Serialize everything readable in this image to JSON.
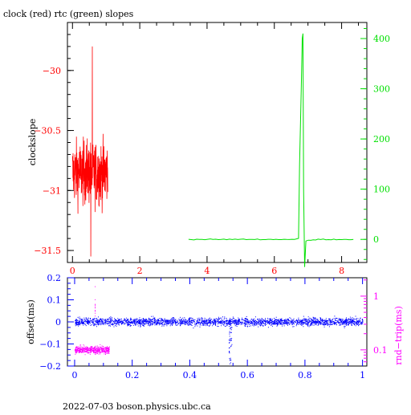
{
  "title": "clock (red) rtc (green) slopes",
  "footer": "2022-07-03  boson.physics.ubc.ca",
  "colors": {
    "clock": "#ff0000",
    "rtc": "#00e000",
    "offset": "#0000ff",
    "rndtrip": "#ff00ff",
    "axes_text": "#000000"
  },
  "chart_data": [
    {
      "type": "line",
      "title": "clock (red) rtc (green) slopes",
      "ylabel": "clockslope",
      "xlim": [
        -0.15,
        8.75
      ],
      "ylim": [
        -31.6,
        -29.6
      ],
      "xticks": [
        0,
        2,
        4,
        6,
        8
      ],
      "xtick_labels": [
        "0",
        "2",
        "4",
        "6",
        "8"
      ],
      "yticks": [
        -30,
        -30.5,
        -31,
        -31.5
      ],
      "ytick_labels": [
        "−30",
        "−30.5",
        "−31",
        "−31.5"
      ],
      "y2lim": [
        -46,
        432
      ],
      "y2ticks": [
        0,
        100,
        200,
        300,
        400
      ],
      "y2tick_labels": [
        "0",
        "100",
        "200",
        "300",
        "400"
      ],
      "series": [
        {
          "name": "clock",
          "axis": "left",
          "x_range": [
            0.0,
            1.05
          ],
          "y_center": -30.85,
          "y_min": -31.55,
          "y_max": -29.8
        },
        {
          "name": "rtc",
          "axis": "right",
          "x": [
            3.45,
            4.5,
            5.5,
            6.6,
            6.72,
            6.75,
            6.8,
            6.83,
            6.85,
            6.87,
            6.9,
            6.94,
            7.3,
            8.0,
            8.35
          ],
          "y": [
            0,
            0,
            0,
            0,
            2,
            150,
            300,
            400,
            410,
            100,
            -55,
            -3,
            0,
            0,
            0
          ]
        }
      ]
    },
    {
      "type": "scatter",
      "ylabel": "offset(ms)",
      "y2label": "rnd−trip(ms)",
      "xlim": [
        -0.025,
        1.015
      ],
      "ylim": [
        -0.2,
        0.2
      ],
      "xticks": [
        0,
        0.2,
        0.4,
        0.6,
        0.8,
        1
      ],
      "xtick_labels": [
        "0",
        "0.2",
        "0.4",
        "0.6",
        "0.8",
        "1"
      ],
      "yticks": [
        0.2,
        0.1,
        0,
        -0.1,
        -0.2
      ],
      "ytick_labels": [
        "0.2",
        "0.1",
        "0",
        "−0.1",
        "−0.2"
      ],
      "y2_scale": "log",
      "y2ticks": [
        1,
        0.1
      ],
      "y2tick_labels": [
        "1",
        "0.1"
      ],
      "series": [
        {
          "name": "offset",
          "x_range": [
            0,
            1
          ],
          "y_center": 0.0,
          "y_spread": 0.03,
          "dip_x": 0.54,
          "dip_y_min": -0.19
        },
        {
          "name": "rnd-trip",
          "x_range": [
            0,
            0.12
          ],
          "y_center": 0.1,
          "spike_x": 0.07,
          "spike_y": 1.5
        }
      ]
    }
  ]
}
